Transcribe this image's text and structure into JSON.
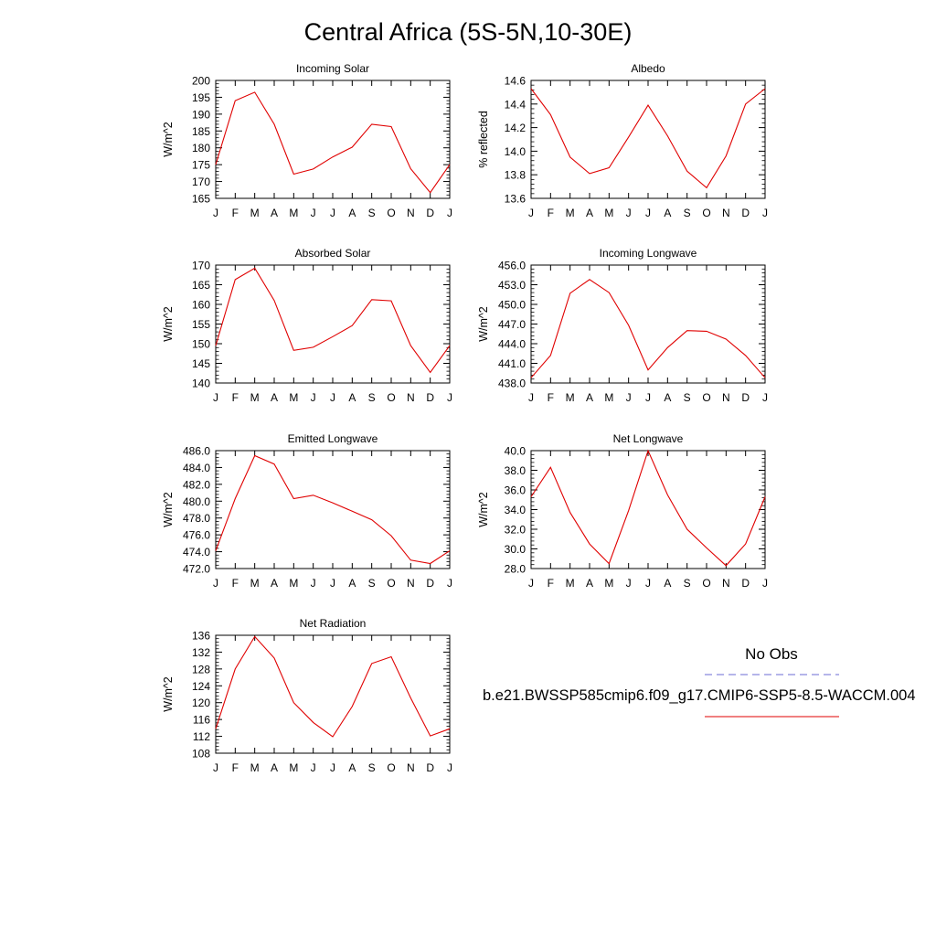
{
  "title": "Central Africa (5S-5N,10-30E)",
  "legend": {
    "obs_label": "No Obs",
    "obs_color": "#6b6bd6",
    "model_label": "b.e21.BWSSP585cmip6.f09_g17.CMIP6-SSP5-8.5-WACCM.004",
    "model_color": "#e00000"
  },
  "chart_data": [
    {
      "type": "line",
      "title": "Incoming Solar",
      "ylabel": "W/m^2",
      "categories": [
        "J",
        "F",
        "M",
        "A",
        "M",
        "J",
        "J",
        "A",
        "S",
        "O",
        "N",
        "D",
        "J"
      ],
      "ylim": [
        165,
        200
      ],
      "yticks": [
        "165",
        "170",
        "175",
        "180",
        "185",
        "190",
        "195",
        "200"
      ],
      "ytick_values": [
        165,
        170,
        175,
        180,
        185,
        190,
        195,
        200
      ],
      "series": [
        {
          "values": [
            175.0,
            194.0,
            196.5,
            187.0,
            172.2,
            173.7,
            177.3,
            180.2,
            187.0,
            186.3,
            173.8,
            166.7,
            175.0
          ]
        }
      ]
    },
    {
      "type": "line",
      "title": "Albedo",
      "ylabel": "% reflected",
      "categories": [
        "J",
        "F",
        "M",
        "A",
        "M",
        "J",
        "J",
        "A",
        "S",
        "O",
        "N",
        "D",
        "J"
      ],
      "ylim": [
        13.6,
        14.6
      ],
      "yticks": [
        "13.6",
        "13.8",
        "14.0",
        "14.2",
        "14.4",
        "14.6"
      ],
      "ytick_values": [
        13.6,
        13.8,
        14.0,
        14.2,
        14.4,
        14.6
      ],
      "series": [
        {
          "values": [
            14.53,
            14.31,
            13.95,
            13.81,
            13.86,
            14.12,
            14.39,
            14.13,
            13.83,
            13.69,
            13.96,
            14.4,
            14.53
          ]
        }
      ]
    },
    {
      "type": "line",
      "title": "Absorbed Solar",
      "ylabel": "W/m^2",
      "categories": [
        "J",
        "F",
        "M",
        "A",
        "M",
        "J",
        "J",
        "A",
        "S",
        "O",
        "N",
        "D",
        "J"
      ],
      "ylim": [
        140,
        170
      ],
      "yticks": [
        "140",
        "145",
        "150",
        "155",
        "160",
        "165",
        "170"
      ],
      "ytick_values": [
        140,
        145,
        150,
        155,
        160,
        165,
        170
      ],
      "series": [
        {
          "values": [
            149.5,
            166.3,
            169.2,
            161.0,
            148.3,
            149.1,
            151.8,
            154.6,
            161.2,
            160.9,
            149.5,
            142.7,
            149.5
          ]
        }
      ]
    },
    {
      "type": "line",
      "title": "Incoming Longwave",
      "ylabel": "W/m^2",
      "categories": [
        "J",
        "F",
        "M",
        "A",
        "M",
        "J",
        "J",
        "A",
        "S",
        "O",
        "N",
        "D",
        "J"
      ],
      "ylim": [
        438.0,
        456.0
      ],
      "yticks": [
        "438.0",
        "441.0",
        "444.0",
        "447.0",
        "450.0",
        "453.0",
        "456.0"
      ],
      "ytick_values": [
        438,
        441,
        444,
        447,
        450,
        453,
        456
      ],
      "series": [
        {
          "values": [
            438.8,
            442.2,
            451.7,
            453.8,
            451.8,
            446.8,
            440.0,
            443.4,
            446.0,
            445.9,
            444.7,
            442.2,
            438.8
          ]
        }
      ]
    },
    {
      "type": "line",
      "title": "Emitted Longwave",
      "ylabel": "W/m^2",
      "categories": [
        "J",
        "F",
        "M",
        "A",
        "M",
        "J",
        "J",
        "A",
        "S",
        "O",
        "N",
        "D",
        "J"
      ],
      "ylim": [
        472.0,
        486.0
      ],
      "yticks": [
        "472.0",
        "474.0",
        "476.0",
        "478.0",
        "480.0",
        "482.0",
        "484.0",
        "486.0"
      ],
      "ytick_values": [
        472,
        474,
        476,
        478,
        480,
        482,
        484,
        486
      ],
      "series": [
        {
          "values": [
            474.1,
            480.3,
            485.4,
            484.4,
            480.3,
            480.7,
            479.8,
            478.8,
            477.8,
            475.9,
            473.0,
            472.6,
            474.1
          ]
        }
      ]
    },
    {
      "type": "line",
      "title": "Net Longwave",
      "ylabel": "W/m^2",
      "categories": [
        "J",
        "F",
        "M",
        "A",
        "M",
        "J",
        "J",
        "A",
        "S",
        "O",
        "N",
        "D",
        "J"
      ],
      "ylim": [
        28.0,
        40.0
      ],
      "yticks": [
        "28.0",
        "30.0",
        "32.0",
        "34.0",
        "36.0",
        "38.0",
        "40.0"
      ],
      "ytick_values": [
        28,
        30,
        32,
        34,
        36,
        38,
        40
      ],
      "series": [
        {
          "values": [
            35.3,
            38.3,
            33.7,
            30.5,
            28.5,
            33.9,
            40.0,
            35.5,
            32.0,
            30.1,
            28.3,
            30.5,
            35.3
          ]
        }
      ]
    },
    {
      "type": "line",
      "title": "Net Radiation",
      "ylabel": "W/m^2",
      "categories": [
        "J",
        "F",
        "M",
        "A",
        "M",
        "J",
        "J",
        "A",
        "S",
        "O",
        "N",
        "D",
        "J"
      ],
      "ylim": [
        108,
        136
      ],
      "yticks": [
        "108",
        "112",
        "116",
        "120",
        "124",
        "128",
        "132",
        "136"
      ],
      "ytick_values": [
        108,
        112,
        116,
        120,
        124,
        128,
        132,
        136
      ],
      "series": [
        {
          "values": [
            113.8,
            128.0,
            135.7,
            130.6,
            120.0,
            115.3,
            111.9,
            119.1,
            129.3,
            130.9,
            121.1,
            112.1,
            113.8
          ]
        }
      ]
    }
  ]
}
